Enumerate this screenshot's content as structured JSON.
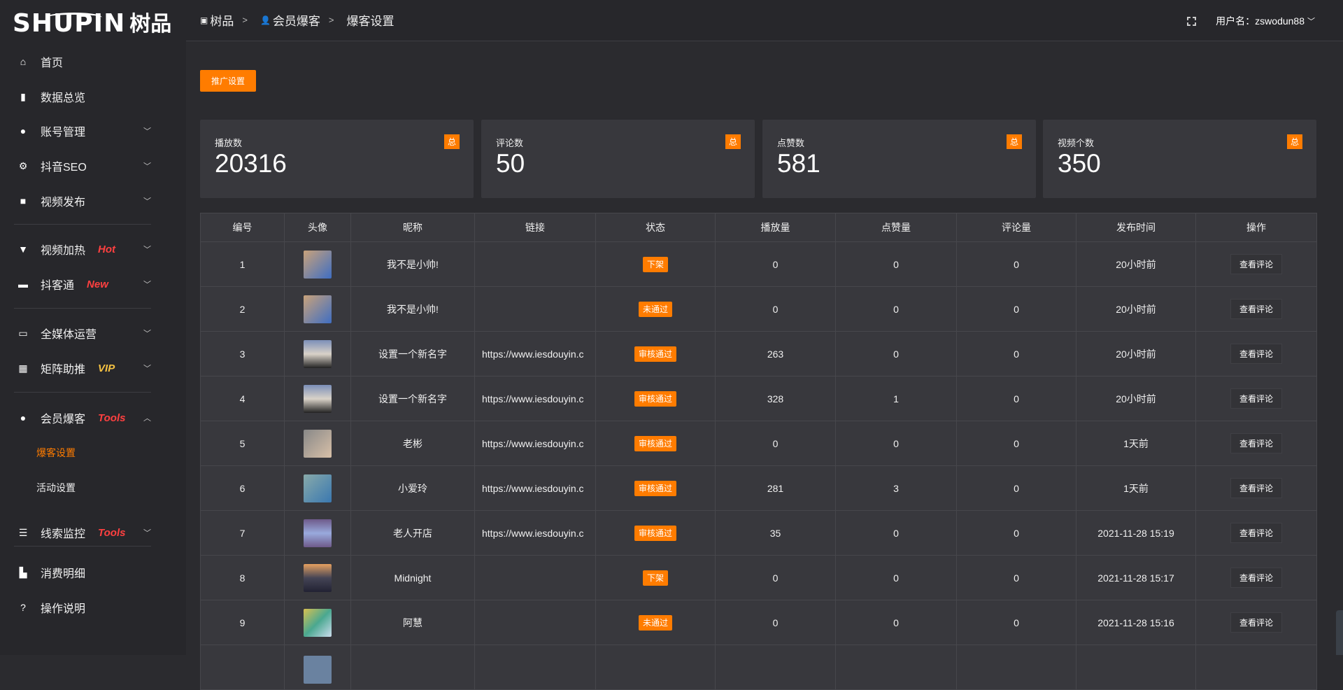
{
  "app": {
    "logo_en": "SHUPIN",
    "logo_cn": "树品"
  },
  "sidebar": {
    "items": [
      {
        "label": "首页",
        "icon": "home-icon",
        "glyph": "⌂"
      },
      {
        "label": "数据总览",
        "icon": "bar-chart-icon",
        "glyph": "▮"
      },
      {
        "label": "账号管理",
        "icon": "user-icon",
        "glyph": "●",
        "expandable": true
      },
      {
        "label": "抖音SEO",
        "icon": "gear-icon",
        "glyph": "⚙",
        "expandable": true
      },
      {
        "label": "视频发布",
        "icon": "camera-icon",
        "glyph": "■",
        "expandable": true
      },
      {
        "label": "视频加热",
        "icon": "flame-icon",
        "glyph": "▼",
        "tag": "Hot",
        "tag_color": "#ff4040",
        "expandable": true
      },
      {
        "label": "抖客通",
        "icon": "chat-icon",
        "glyph": "▬",
        "tag": "New",
        "tag_color": "#ff4040",
        "expandable": true
      },
      {
        "label": "全媒体运营",
        "icon": "monitor-icon",
        "glyph": "▭",
        "expandable": true
      },
      {
        "label": "矩阵助推",
        "icon": "grid-icon",
        "glyph": "▦",
        "tag": "VIP",
        "tag_color": "#f5c242",
        "expandable": true
      },
      {
        "label": "会员爆客",
        "icon": "user-icon",
        "glyph": "●",
        "tag": "Tools",
        "tag_color": "#ff4040",
        "expanded": true,
        "children": [
          {
            "label": "爆客设置",
            "active": true
          },
          {
            "label": "活动设置"
          }
        ]
      },
      {
        "label": "线索监控",
        "icon": "sliders-icon",
        "glyph": "☰",
        "tag": "Tools",
        "tag_color": "#ff4040",
        "expandable": true
      },
      {
        "label": "消费明细",
        "icon": "wallet-icon",
        "glyph": "▙"
      },
      {
        "label": "操作说明",
        "icon": "help-icon",
        "glyph": "?"
      }
    ]
  },
  "header": {
    "breadcrumb": [
      "树品",
      "会员爆客",
      "爆客设置"
    ],
    "user_label": "用户名：zswodun88"
  },
  "toolbar": {
    "promo_label": "推广设置"
  },
  "stats": [
    {
      "label": "播放数",
      "value": "20316",
      "badge": "总"
    },
    {
      "label": "评论数",
      "value": "50",
      "badge": "总"
    },
    {
      "label": "点赞数",
      "value": "581",
      "badge": "总"
    },
    {
      "label": "视频个数",
      "value": "350",
      "badge": "总"
    }
  ],
  "table": {
    "columns": [
      "编号",
      "头像",
      "昵称",
      "链接",
      "状态",
      "播放量",
      "点赞量",
      "评论量",
      "发布时间",
      "操作"
    ],
    "action_label": "查看评论",
    "rows": [
      {
        "id": "1",
        "nickname": "我不是小帅!",
        "link": "",
        "status": "下架",
        "plays": "0",
        "likes": "0",
        "comments": "0",
        "time": "20小时前",
        "avatar": "linear-gradient(135deg,#c9a27a,#3f6ec2)"
      },
      {
        "id": "2",
        "nickname": "我不是小帅!",
        "link": "",
        "status": "未通过",
        "plays": "0",
        "likes": "0",
        "comments": "0",
        "time": "20小时前",
        "avatar": "linear-gradient(135deg,#c9a27a,#3f6ec2)"
      },
      {
        "id": "3",
        "nickname": "设置一个新名字",
        "link": "https://www.iesdouyin.c",
        "status": "审核通过",
        "plays": "263",
        "likes": "0",
        "comments": "0",
        "time": "20小时前",
        "avatar": "linear-gradient(180deg,#7b8fb8,#d9d2c8,#222)"
      },
      {
        "id": "4",
        "nickname": "设置一个新名字",
        "link": "https://www.iesdouyin.c",
        "status": "审核通过",
        "plays": "328",
        "likes": "1",
        "comments": "0",
        "time": "20小时前",
        "avatar": "linear-gradient(180deg,#7b8fb8,#d9d2c8,#222)"
      },
      {
        "id": "5",
        "nickname": "老彬",
        "link": "https://www.iesdouyin.c",
        "status": "审核通过",
        "plays": "0",
        "likes": "0",
        "comments": "0",
        "time": "1天前",
        "avatar": "linear-gradient(135deg,#888,#d8c0a8)"
      },
      {
        "id": "6",
        "nickname": "小爱玲",
        "link": "https://www.iesdouyin.c",
        "status": "审核通过",
        "plays": "281",
        "likes": "3",
        "comments": "0",
        "time": "1天前",
        "avatar": "linear-gradient(135deg,#8aa,#3a78b0)"
      },
      {
        "id": "7",
        "nickname": "老人开店",
        "link": "https://www.iesdouyin.c",
        "status": "审核通过",
        "plays": "35",
        "likes": "0",
        "comments": "0",
        "time": "2021-11-28 15:19",
        "avatar": "linear-gradient(180deg,#6e5a8a,#9ad,#6e5a8a)"
      },
      {
        "id": "8",
        "nickname": "Midnight",
        "link": "",
        "status": "下架",
        "plays": "0",
        "likes": "0",
        "comments": "0",
        "time": "2021-11-28 15:17",
        "avatar": "linear-gradient(180deg,#e5a060,#445,#223)"
      },
      {
        "id": "9",
        "nickname": "阿慧",
        "link": "",
        "status": "未通过",
        "plays": "0",
        "likes": "0",
        "comments": "0",
        "time": "2021-11-28 15:16",
        "avatar": "linear-gradient(135deg,#d8c050,#4aa890,#cde)"
      },
      {
        "id": "",
        "nickname": "",
        "link": "",
        "status": "",
        "plays": "",
        "likes": "",
        "comments": "",
        "time": "",
        "avatar": "linear-gradient(#6a82a0,#6a82a0)",
        "partial": true
      }
    ]
  },
  "colors": {
    "accent": "#ff7c00",
    "link": "#2a82f0",
    "hot": "#ff4040",
    "vip": "#f5c242"
  }
}
